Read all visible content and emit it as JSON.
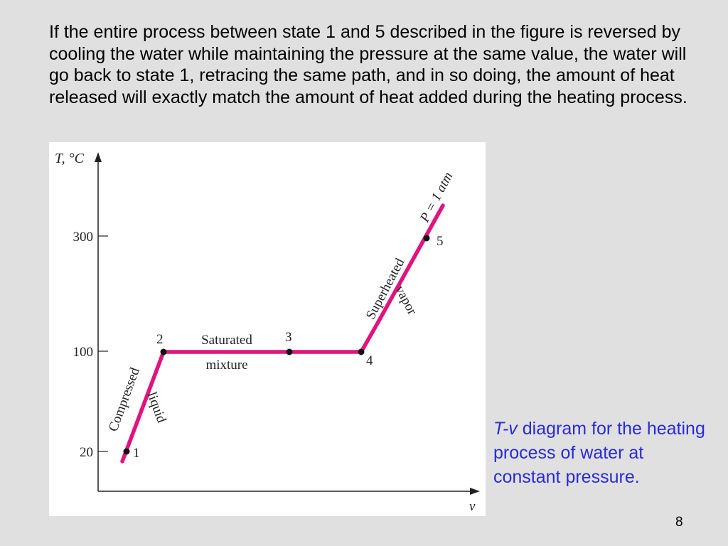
{
  "body_text": "If the entire process between state 1 and 5 described in the figure is reversed by cooling the water while maintaining the pressure at the same value, the water will go back to state 1, retracing the same path, and in so doing, the amount of heat released will exactly match the amount of heat added during the heating process.",
  "figure": {
    "y_axis_label": "T, °C",
    "x_axis_label": "v",
    "y_ticks": [
      "300",
      "100",
      "20"
    ],
    "state_labels": [
      "1",
      "2",
      "3",
      "4",
      "5"
    ],
    "region_labels": {
      "compressed": "Compressed",
      "liquid": "liquid",
      "saturated": "Saturated",
      "mixture": "mixture",
      "superheated": "Superheated",
      "vapor": "vapor",
      "pressure": "P = 1 atm"
    },
    "line_color": "#e0147e"
  },
  "caption": {
    "tv": "T-v",
    "rest": " diagram for the heating process of water at constant pressure."
  },
  "page_number": "8"
}
